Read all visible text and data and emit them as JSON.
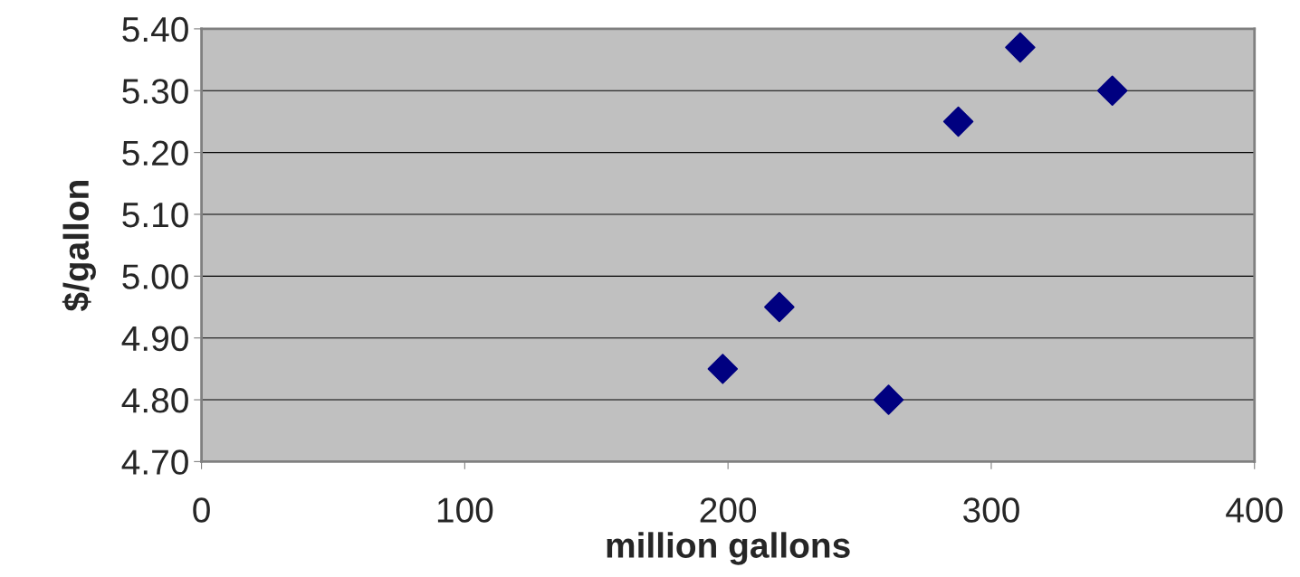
{
  "chart_data": {
    "type": "scatter",
    "xlabel": "million gallons",
    "ylabel": "$/gallon",
    "x": [
      198,
      219.5,
      261,
      287.5,
      311,
      346
    ],
    "values": [
      4.85,
      4.95,
      4.8,
      5.25,
      5.37,
      5.3
    ],
    "color": "#000080",
    "marker": "diamond",
    "grid": "y",
    "legend": false,
    "xlim": [
      0,
      400
    ],
    "xticks": [
      0,
      100,
      200,
      300,
      400
    ],
    "ylim": [
      4.7,
      5.4
    ],
    "yticks": [
      {
        "value": 4.7,
        "label": "4.70"
      },
      {
        "value": 4.8,
        "label": "4.80"
      },
      {
        "value": 4.9,
        "label": "4.90"
      },
      {
        "value": 5.0,
        "label": "5.00"
      },
      {
        "value": 5.1,
        "label": "5.10"
      },
      {
        "value": 5.2,
        "label": "5.20"
      },
      {
        "value": 5.3,
        "label": "5.30"
      },
      {
        "value": 5.4,
        "label": "5.40"
      }
    ]
  }
}
